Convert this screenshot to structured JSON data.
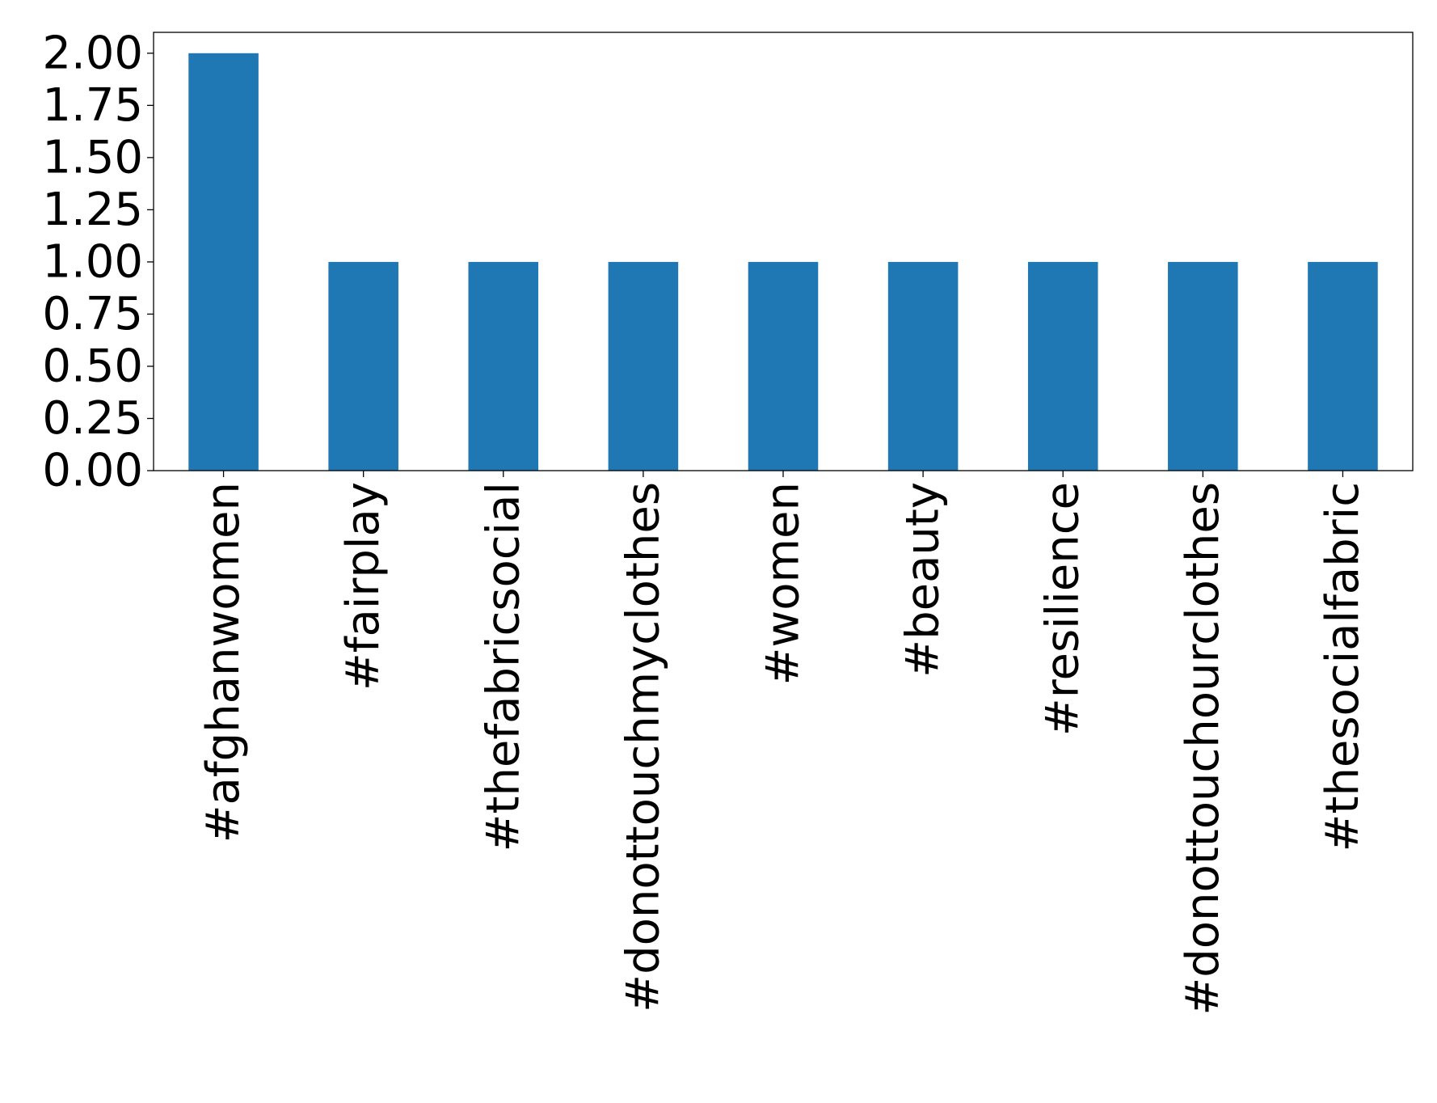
{
  "chart_data": {
    "type": "bar",
    "categories": [
      "#afghanwomen",
      "#fairplay",
      "#thefabricsocial",
      "#donottouchmyclothes",
      "#women",
      "#beauty",
      "#resilience",
      "#donottouchourclothes",
      "#thesocialfabric"
    ],
    "values": [
      2,
      1,
      1,
      1,
      1,
      1,
      1,
      1,
      1
    ],
    "ylim": [
      0,
      2.1
    ],
    "yticks": [
      "0.00",
      "0.25",
      "0.50",
      "0.75",
      "1.00",
      "1.25",
      "1.50",
      "1.75",
      "2.00"
    ],
    "title": "",
    "xlabel": "",
    "ylabel": "",
    "grid": false,
    "bar_color": "#1f77b4"
  }
}
